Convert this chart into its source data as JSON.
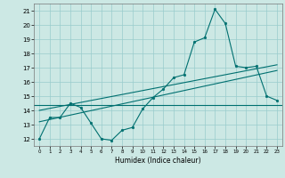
{
  "xlabel": "Humidex (Indice chaleur)",
  "ylabel": "",
  "bg_color": "#cce8e4",
  "grid_color": "#99cccc",
  "line_color": "#007070",
  "ylim": [
    11.5,
    21.5
  ],
  "xlim": [
    -0.5,
    23.5
  ],
  "yticks": [
    12,
    13,
    14,
    15,
    16,
    17,
    18,
    19,
    20,
    21
  ],
  "xticks": [
    0,
    1,
    2,
    3,
    4,
    5,
    6,
    7,
    8,
    9,
    10,
    11,
    12,
    13,
    14,
    15,
    16,
    17,
    18,
    19,
    20,
    21,
    22,
    23
  ],
  "main_line_x": [
    0,
    1,
    2,
    3,
    4,
    5,
    6,
    7,
    8,
    9,
    10,
    11,
    12,
    13,
    14,
    15,
    16,
    17,
    18,
    19,
    20,
    21,
    22,
    23
  ],
  "main_line_y": [
    12.0,
    13.5,
    13.5,
    14.5,
    14.2,
    13.1,
    12.0,
    11.9,
    12.6,
    12.8,
    14.1,
    14.9,
    15.5,
    16.3,
    16.5,
    18.8,
    19.1,
    21.1,
    20.1,
    17.1,
    17.0,
    17.1,
    15.0,
    14.7
  ],
  "reg_line1_x": [
    0,
    23
  ],
  "reg_line1_y": [
    14.0,
    17.2
  ],
  "reg_line2_x": [
    0,
    23
  ],
  "reg_line2_y": [
    13.2,
    16.8
  ],
  "hline_y": 14.4,
  "marker_size": 2.0,
  "line_width": 0.8
}
